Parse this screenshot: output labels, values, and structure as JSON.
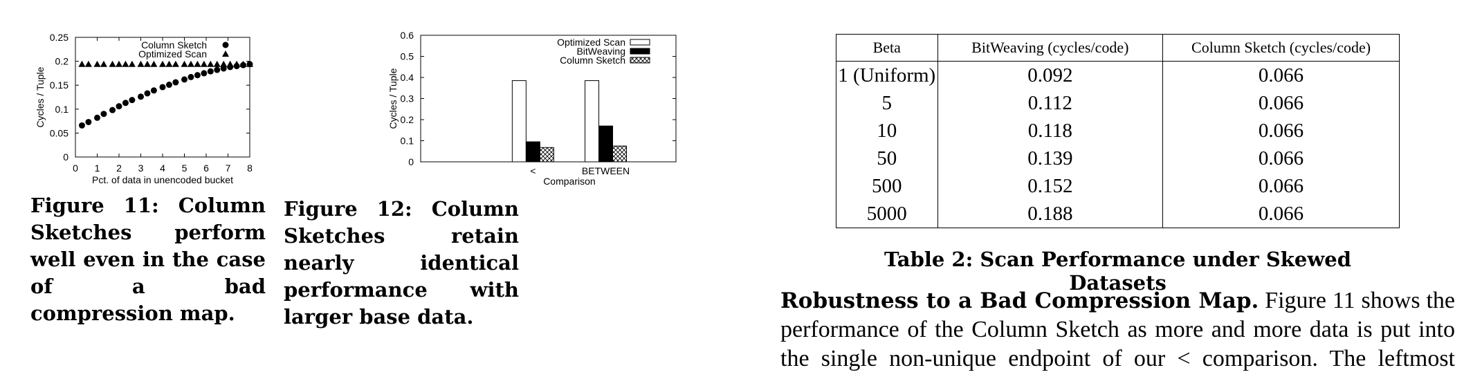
{
  "chart_data": [
    {
      "type": "scatter",
      "title": "",
      "xlabel": "Pct. of data in unencoded bucket",
      "ylabel": "Cycles / Tuple",
      "xlim": [
        0,
        8
      ],
      "ylim": [
        0,
        0.25
      ],
      "xticks": [
        "0",
        "1",
        "2",
        "3",
        "4",
        "5",
        "6",
        "7",
        "8"
      ],
      "yticks": [
        "0",
        "0.05",
        "0.1",
        "0.15",
        "0.2",
        "0.25"
      ],
      "legend_position": "top-right",
      "series": [
        {
          "name": "Column Sketch",
          "marker": "circle",
          "points": [
            [
              0.3,
              0.066
            ],
            [
              0.6,
              0.073
            ],
            [
              1.0,
              0.082
            ],
            [
              1.3,
              0.09
            ],
            [
              1.7,
              0.098
            ],
            [
              2.0,
              0.106
            ],
            [
              2.3,
              0.113
            ],
            [
              2.6,
              0.119
            ],
            [
              3.0,
              0.126
            ],
            [
              3.3,
              0.133
            ],
            [
              3.6,
              0.139
            ],
            [
              4.0,
              0.146
            ],
            [
              4.3,
              0.151
            ],
            [
              4.6,
              0.156
            ],
            [
              5.0,
              0.162
            ],
            [
              5.3,
              0.167
            ],
            [
              5.6,
              0.171
            ],
            [
              5.9,
              0.175
            ],
            [
              6.2,
              0.179
            ],
            [
              6.5,
              0.182
            ],
            [
              6.8,
              0.185
            ],
            [
              7.1,
              0.188
            ],
            [
              7.4,
              0.19
            ],
            [
              7.7,
              0.192
            ],
            [
              8.0,
              0.194
            ]
          ]
        },
        {
          "name": "Optimized Scan",
          "marker": "triangle",
          "points": [
            [
              0.3,
              0.194
            ],
            [
              0.6,
              0.194
            ],
            [
              1.0,
              0.194
            ],
            [
              1.3,
              0.194
            ],
            [
              1.7,
              0.194
            ],
            [
              2.0,
              0.194
            ],
            [
              2.3,
              0.194
            ],
            [
              2.6,
              0.194
            ],
            [
              3.0,
              0.194
            ],
            [
              3.3,
              0.194
            ],
            [
              3.6,
              0.194
            ],
            [
              4.0,
              0.194
            ],
            [
              4.3,
              0.194
            ],
            [
              4.6,
              0.194
            ],
            [
              5.0,
              0.194
            ],
            [
              5.3,
              0.194
            ],
            [
              5.6,
              0.194
            ],
            [
              5.9,
              0.194
            ],
            [
              6.2,
              0.194
            ],
            [
              6.5,
              0.194
            ],
            [
              6.8,
              0.194
            ],
            [
              7.1,
              0.194
            ],
            [
              7.4,
              0.194
            ],
            [
              7.7,
              0.194
            ],
            [
              8.0,
              0.194
            ]
          ]
        }
      ]
    },
    {
      "type": "bar",
      "title": "",
      "xlabel": "Comparison",
      "ylabel": "Cycles / Tuple",
      "categories": [
        "<",
        "BETWEEN"
      ],
      "ylim": [
        0,
        0.6
      ],
      "yticks": [
        "0",
        "0.1",
        "0.2",
        "0.3",
        "0.4",
        "0.5",
        "0.6"
      ],
      "legend_position": "top-right",
      "series": [
        {
          "name": "Optimized Scan",
          "fill": "white",
          "values": [
            0.385,
            0.385
          ]
        },
        {
          "name": "BitWeaving",
          "fill": "black",
          "values": [
            0.095,
            0.17
          ]
        },
        {
          "name": "Column Sketch",
          "fill": "crosshatch",
          "values": [
            0.068,
            0.075
          ]
        }
      ]
    },
    {
      "type": "table",
      "headers": [
        "Beta",
        "BitWeaving (cycles/code)",
        "Column Sketch (cycles/code)"
      ],
      "rows": [
        [
          "1 (Uniform)",
          "0.092",
          "0.066"
        ],
        [
          "5",
          "0.112",
          "0.066"
        ],
        [
          "10",
          "0.118",
          "0.066"
        ],
        [
          "50",
          "0.139",
          "0.066"
        ],
        [
          "500",
          "0.152",
          "0.066"
        ],
        [
          "5000",
          "0.188",
          "0.066"
        ]
      ]
    }
  ],
  "captions": {
    "fig11": "Figure 11: Column Sketches perform well even in the case of a bad compression map.",
    "fig12": "Figure 12: Column Sketches retain nearly identical performance with larger base data.",
    "table2": "Table 2: Scan Performance under Skewed Datasets"
  },
  "body": {
    "lead": "Robustness to a Bad Compression Map.",
    "text": " Figure 11 shows the performance of the Column Sketch as more and more data is put into the single non-unique endpoint of our < comparison. The leftmost"
  }
}
